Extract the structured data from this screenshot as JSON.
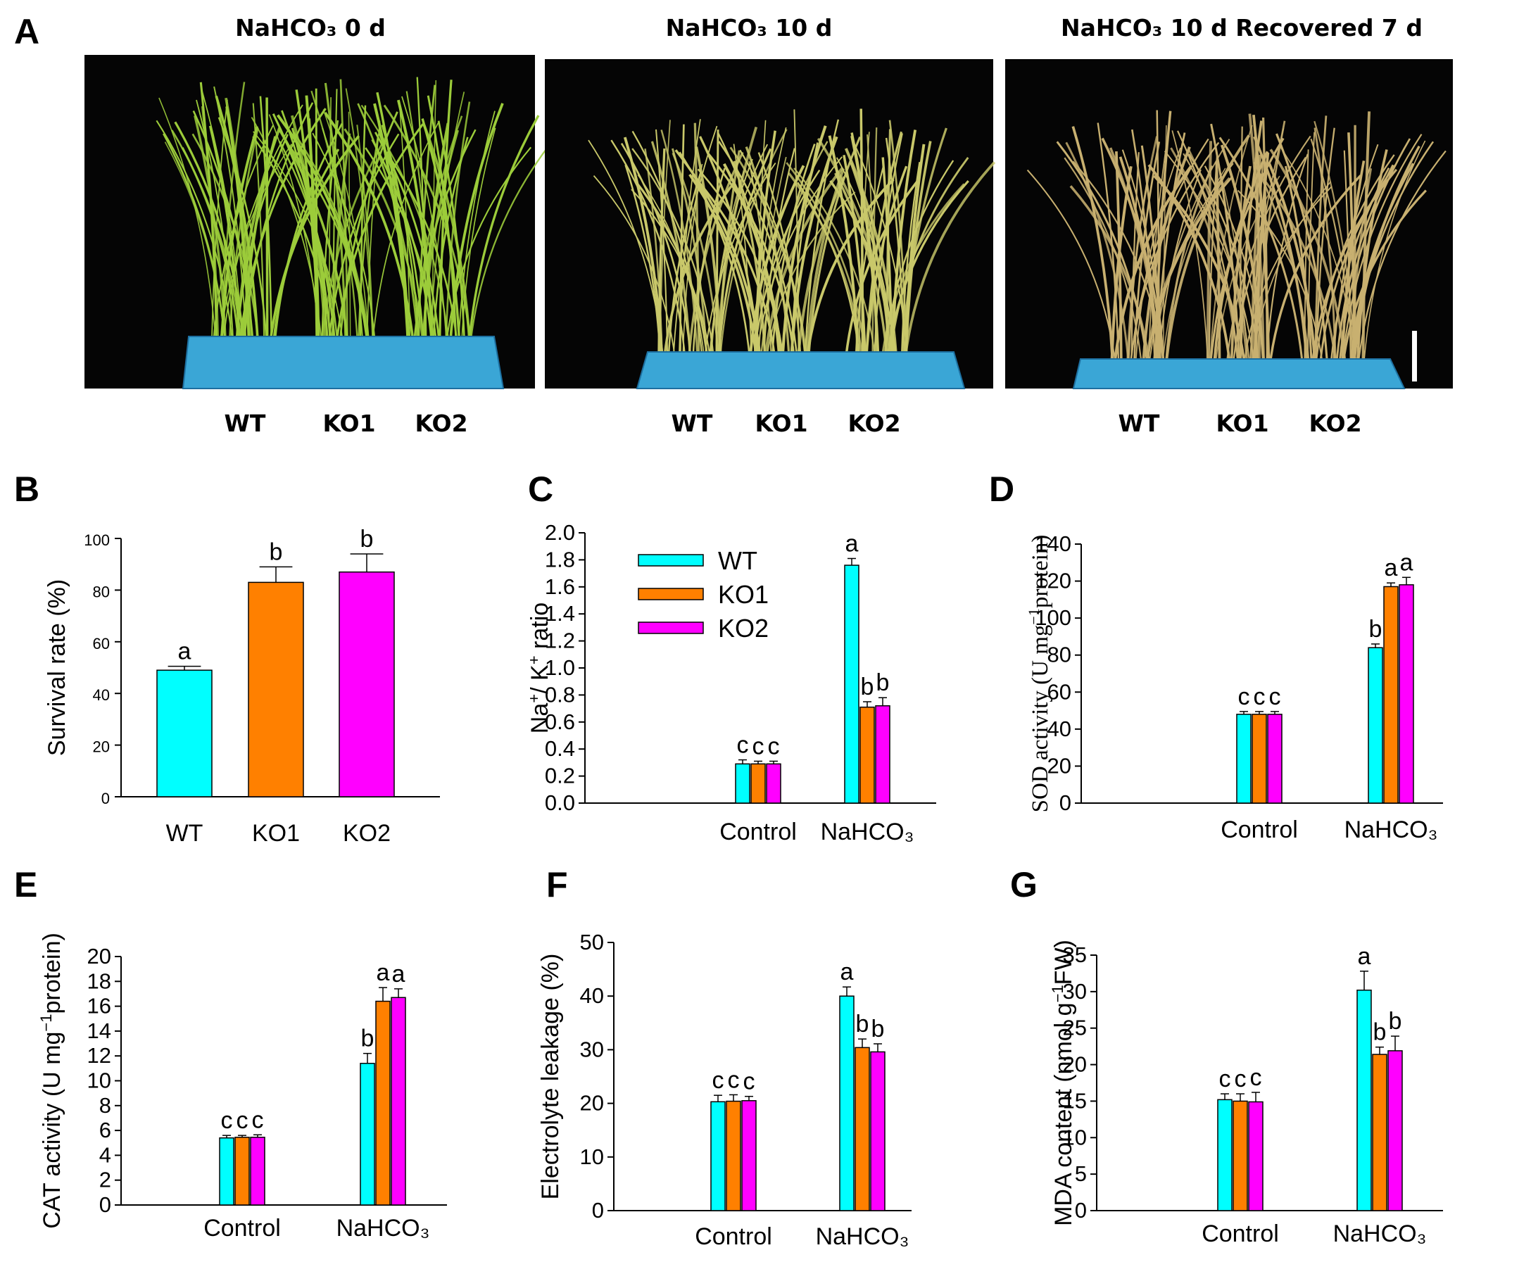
{
  "panel_labels": [
    "A",
    "B",
    "C",
    "D",
    "E",
    "F",
    "G"
  ],
  "photo_panel": {
    "titles": [
      "NaHCO₃ 0 d",
      "NaHCO₃ 10 d",
      "NaHCO₃ 10 d Recovered 7 d"
    ],
    "genotypes": [
      "WT",
      "KO1",
      "KO2"
    ],
    "background_color": "#050505",
    "tray_color": "#3aa6d6",
    "plant_colors": [
      "#9ccc3a",
      "#c9c86a",
      "#c8b070"
    ]
  },
  "colors": {
    "WT": "#00ffff",
    "KO1": "#ff8000",
    "KO2": "#ff00ff"
  },
  "legend": [
    "WT",
    "KO1",
    "KO2"
  ],
  "chart_data": [
    {
      "panel": "B",
      "type": "bar",
      "categories": [
        "WT",
        "KO1",
        "KO2"
      ],
      "values": [
        49,
        83,
        87
      ],
      "errors": [
        1.5,
        6,
        7
      ],
      "letters": [
        "a",
        "b",
        "b"
      ],
      "ylabel": "Survival rate (%)",
      "ylim": [
        0,
        100
      ],
      "ticks": [
        0,
        20,
        40,
        60,
        80,
        100
      ]
    },
    {
      "panel": "C",
      "type": "bar",
      "groups": [
        "Control",
        "NaHCO₃"
      ],
      "series": [
        {
          "name": "WT",
          "values": [
            0.29,
            1.76
          ],
          "errors": [
            0.03,
            0.05
          ],
          "letters": [
            "c",
            "a"
          ]
        },
        {
          "name": "KO1",
          "values": [
            0.29,
            0.71
          ],
          "errors": [
            0.02,
            0.04
          ],
          "letters": [
            "c",
            "b"
          ]
        },
        {
          "name": "KO2",
          "values": [
            0.29,
            0.72
          ],
          "errors": [
            0.02,
            0.06
          ],
          "letters": [
            "c",
            "b"
          ]
        }
      ],
      "ylabel_parts": [
        "Na",
        "+",
        "/ K",
        "+",
        " ratio"
      ],
      "ylim": [
        0,
        2.0
      ],
      "ticks": [
        "0.0",
        "0.2",
        "0.4",
        "0.6",
        "0.8",
        "1.0",
        "1.2",
        "1.4",
        "1.6",
        "1.8",
        "2.0"
      ]
    },
    {
      "panel": "D",
      "type": "bar",
      "groups": [
        "Control",
        "NaHCO₃"
      ],
      "series": [
        {
          "name": "WT",
          "values": [
            48,
            84
          ],
          "errors": [
            1.5,
            2
          ],
          "letters": [
            "c",
            "b"
          ]
        },
        {
          "name": "KO1",
          "values": [
            48,
            117
          ],
          "errors": [
            1.5,
            2
          ],
          "letters": [
            "c",
            "a"
          ]
        },
        {
          "name": "KO2",
          "values": [
            48,
            118
          ],
          "errors": [
            1.5,
            4
          ],
          "letters": [
            "c",
            "a"
          ]
        }
      ],
      "ylabel_parts": [
        "SOD activity (U mg",
        "−1",
        "protein)"
      ],
      "ylim": [
        0,
        140
      ],
      "ticks": [
        0,
        20,
        40,
        60,
        80,
        100,
        120,
        140
      ]
    },
    {
      "panel": "E",
      "type": "bar",
      "groups": [
        "Control",
        "NaHCO₃"
      ],
      "series": [
        {
          "name": "WT",
          "values": [
            5.4,
            11.4
          ],
          "errors": [
            0.2,
            0.8
          ],
          "letters": [
            "c",
            "b"
          ]
        },
        {
          "name": "KO1",
          "values": [
            5.45,
            16.4
          ],
          "errors": [
            0.15,
            1.1
          ],
          "letters": [
            "c",
            "a"
          ]
        },
        {
          "name": "KO2",
          "values": [
            5.45,
            16.7
          ],
          "errors": [
            0.2,
            0.7
          ],
          "letters": [
            "c",
            "a"
          ]
        }
      ],
      "ylabel_parts": [
        "CAT activity (U mg",
        "−1",
        "protein)"
      ],
      "ylim": [
        0,
        20
      ],
      "ticks": [
        0,
        2,
        4,
        6,
        8,
        10,
        12,
        14,
        16,
        18,
        20
      ]
    },
    {
      "panel": "F",
      "type": "bar",
      "groups": [
        "Control",
        "NaHCO₃"
      ],
      "series": [
        {
          "name": "WT",
          "values": [
            20.3,
            40
          ],
          "errors": [
            1.2,
            1.7
          ],
          "letters": [
            "c",
            "a"
          ]
        },
        {
          "name": "KO1",
          "values": [
            20.4,
            30.4
          ],
          "errors": [
            1.2,
            1.6
          ],
          "letters": [
            "c",
            "b"
          ]
        },
        {
          "name": "KO2",
          "values": [
            20.5,
            29.6
          ],
          "errors": [
            0.8,
            1.5
          ],
          "letters": [
            "c",
            "b"
          ]
        }
      ],
      "ylabel": "Electrolyte leakage (%)",
      "ylim": [
        0,
        50
      ],
      "ticks": [
        0,
        10,
        20,
        30,
        40,
        50
      ]
    },
    {
      "panel": "G",
      "type": "bar",
      "groups": [
        "Control",
        "NaHCO₃"
      ],
      "series": [
        {
          "name": "WT",
          "values": [
            15.2,
            30.2
          ],
          "errors": [
            0.8,
            2.6
          ],
          "letters": [
            "c",
            "a"
          ]
        },
        {
          "name": "KO1",
          "values": [
            15.0,
            21.4
          ],
          "errors": [
            1.0,
            1.0
          ],
          "letters": [
            "c",
            "b"
          ]
        },
        {
          "name": "KO2",
          "values": [
            14.9,
            21.9
          ],
          "errors": [
            1.3,
            2.0
          ],
          "letters": [
            "c",
            "b"
          ]
        }
      ],
      "ylabel_parts": [
        "MDA content (nmol g",
        "−1",
        "FW)"
      ],
      "ylim": [
        0,
        35
      ],
      "ticks": [
        0,
        5,
        10,
        15,
        20,
        25,
        30,
        35
      ]
    }
  ]
}
